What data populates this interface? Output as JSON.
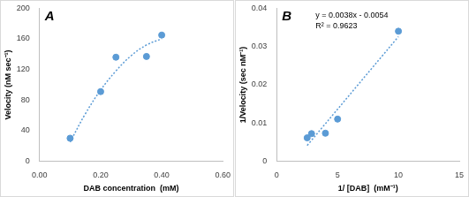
{
  "chart_data": [
    {
      "type": "scatter",
      "title": "A",
      "x_label": "DAB concentration  (mM)",
      "y_label": "Velocity (nM sec⁻¹)",
      "series": [
        {
          "type": "scatter",
          "color": "#5b9bd5",
          "marker": "circle",
          "x": [
            0.1,
            0.2,
            0.25,
            0.35,
            0.4
          ],
          "values": [
            30,
            91,
            136,
            137,
            165
          ]
        },
        {
          "type": "line",
          "color": "#5b9bd5",
          "line_style": "dotted",
          "x": [
            0.1,
            0.15,
            0.2,
            0.25,
            0.3,
            0.35,
            0.4
          ],
          "values": [
            25,
            62,
            93,
            118,
            138,
            152,
            160
          ]
        }
      ],
      "xlim": [
        0,
        0.6
      ],
      "xticks": [
        {
          "value": 0,
          "label": "0.00"
        },
        {
          "value": 0.2,
          "label": "0.20"
        },
        {
          "value": 0.4,
          "label": "0.40"
        },
        {
          "value": 0.6,
          "label": "0.60"
        }
      ],
      "ylim": [
        0,
        200
      ],
      "yticks": [
        0,
        40,
        80,
        120,
        160,
        200
      ],
      "grid": false
    },
    {
      "type": "scatter",
      "title": "B",
      "x_label": "1/ [DAB]  (mM⁻¹)",
      "y_label": "1/Velocity (sec nM⁻¹)",
      "annotations": [
        "y = 0.0038x - 0.0054",
        "R² = 0.9623"
      ],
      "series": [
        {
          "type": "scatter",
          "color": "#5b9bd5",
          "marker": "circle",
          "x": [
            10,
            5,
            4,
            2.86,
            2.5
          ],
          "values": [
            0.034,
            0.011,
            0.0073,
            0.0072,
            0.0061
          ]
        },
        {
          "type": "line",
          "color": "#5b9bd5",
          "line_style": "dotted",
          "x": [
            2.5,
            10
          ],
          "values": [
            0.0041,
            0.0326
          ]
        }
      ],
      "xlim": [
        0,
        15
      ],
      "xticks": [
        0,
        5,
        10,
        15
      ],
      "ylim": [
        0,
        0.04
      ],
      "yticks": [
        0,
        0.01,
        0.02,
        0.03,
        0.04
      ],
      "grid": false
    }
  ]
}
